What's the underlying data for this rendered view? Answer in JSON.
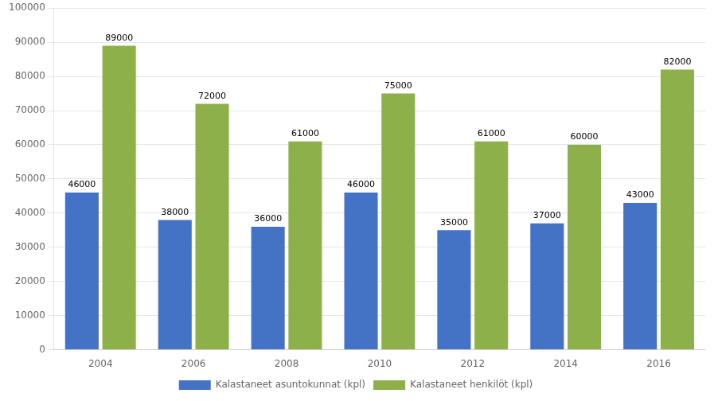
{
  "chart_data": {
    "type": "bar",
    "categories": [
      "2004",
      "2006",
      "2008",
      "2010",
      "2012",
      "2014",
      "2016"
    ],
    "series": [
      {
        "name": "Kalastaneet asuntokunnat (kpl)",
        "color": "#4472C4",
        "values": [
          46000,
          38000,
          36000,
          46000,
          35000,
          37000,
          43000
        ]
      },
      {
        "name": "Kalastaneet henkilöt (kpl)",
        "color": "#8DB04A",
        "values": [
          89000,
          72000,
          61000,
          75000,
          61000,
          60000,
          82000
        ]
      }
    ],
    "ylim": [
      0,
      100000
    ],
    "yticks": [
      0,
      10000,
      20000,
      30000,
      40000,
      50000,
      60000,
      70000,
      80000,
      90000,
      100000
    ],
    "grid": true,
    "legend": "bottom",
    "data_labels": true
  }
}
